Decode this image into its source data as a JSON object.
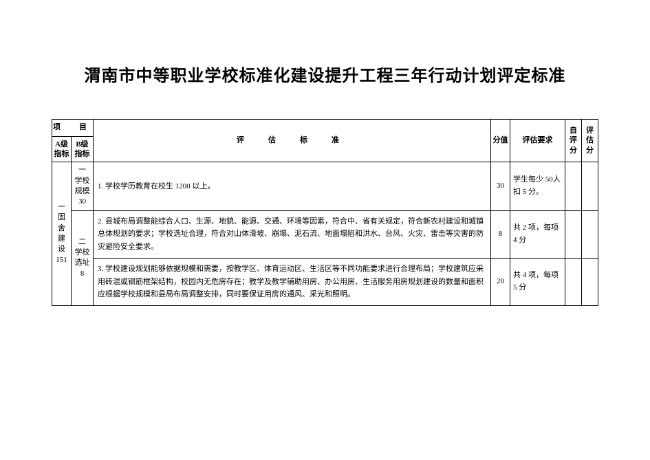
{
  "title": "渭南市中等职业学校标准化建设提升工程三年行动计划评定标准",
  "headers": {
    "project": "项　目",
    "a_level": "A级指标",
    "b_level": "B级指标",
    "criteria": "评　估　标　准",
    "score": "分值",
    "requirement": "评估要求",
    "self_score": "自评分",
    "eval_score": "评估分"
  },
  "section_a": {
    "label_line1": "一",
    "label_line2": "固",
    "label_line3": "舍",
    "label_line4": "建",
    "label_line5": "设",
    "label_score": "151"
  },
  "rows": [
    {
      "b_label_line1": "一",
      "b_label_line2": "学校",
      "b_label_line3": "规模",
      "b_label_score": "30",
      "criteria": "1. 学校学历教育在校生 1200 以上。",
      "score": "30",
      "requirement": "学生每少 50人扣 5 分。"
    },
    {
      "b_label_line1": "二",
      "b_label_line2": "学校",
      "b_label_line3": "选址",
      "b_label_score": "8",
      "criteria": "2. 县城布局调整能综合人口、生源、地貌、能源、交通、环境等因素，符合中、省有关规定，符合新农村建设和城镇总体规划的要求；学校选址合理，符合对山体滑坡、崩塌、泥石流、地面塌陷和洪水、台风、火灾、雷击等灾害的防灾避险安全要求。",
      "score": "8",
      "requirement": "共 2 项，每项4 分"
    },
    {
      "b_label_line1": "",
      "b_label_line2": "",
      "b_label_line3": "",
      "b_label_score": "",
      "criteria": "3. 学校建设规划能够依据规模和需要，按教学区、体育运动区、生活区等不同功能要求进行合理布局；学校建筑应采用砖混或钢筋框架结构，校园内无危房存在；教学及教学辅助用房、办公用房、生活服务用房规划建设的数量和面积应根据学校规模和县局布局调整安排，同时要保证用房的通风、采光和照明。",
      "score": "20",
      "requirement": "共 4 项，每项5 分"
    }
  ]
}
